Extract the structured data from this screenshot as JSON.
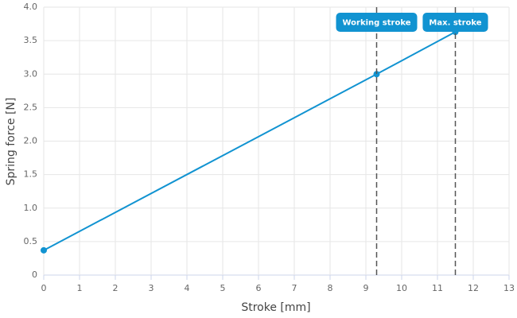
{
  "chart_data": {
    "type": "line",
    "x": [
      0,
      9.3,
      11.5
    ],
    "values": [
      0.37,
      3.0,
      3.63
    ],
    "color": "#1193d1",
    "xlabel": "Stroke [mm]",
    "ylabel": "Spring force [N]",
    "xlim": [
      0,
      13
    ],
    "xticks": [
      0,
      1,
      2,
      3,
      4,
      5,
      6,
      7,
      8,
      9,
      10,
      11,
      12,
      13
    ],
    "ylim": [
      0,
      4
    ],
    "yticks": [
      0,
      0.5,
      {
        "value": 1,
        "label": "1.0"
      },
      1.5,
      {
        "value": 2,
        "label": "2.0"
      },
      2.5,
      {
        "value": 3,
        "label": "3.0"
      },
      3.5,
      {
        "value": 4,
        "label": "4.0"
      }
    ],
    "grid": true,
    "annotations": [
      {
        "label": "Working stroke",
        "x": 9.3
      },
      {
        "label": "Max. stroke",
        "x": 11.5
      }
    ]
  }
}
